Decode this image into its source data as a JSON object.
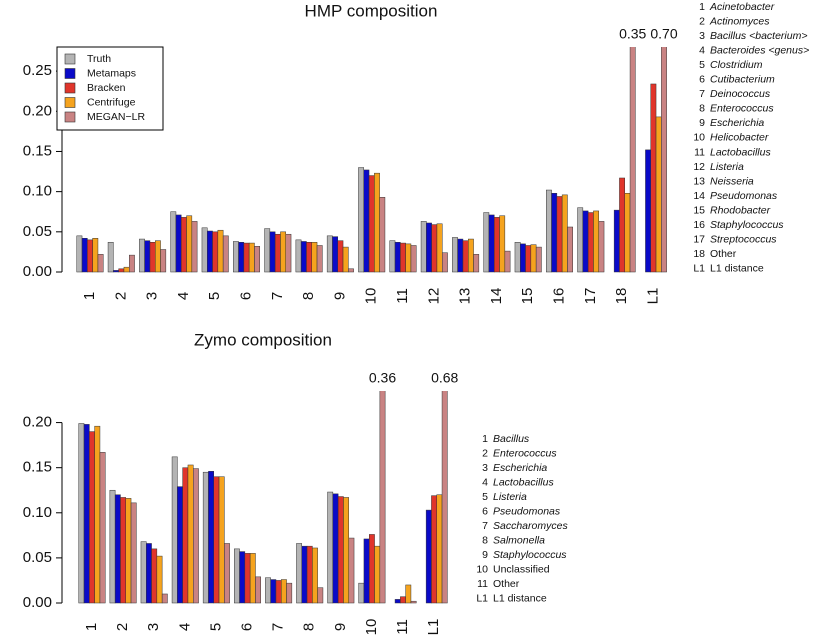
{
  "chart_data": [
    {
      "type": "bar",
      "title": "HMP composition",
      "categories": [
        "1",
        "2",
        "3",
        "4",
        "5",
        "6",
        "7",
        "8",
        "9",
        "10",
        "11",
        "12",
        "13",
        "14",
        "15",
        "16",
        "17",
        "18",
        "L1"
      ],
      "series": [
        {
          "name": "Truth",
          "color": "#b4b4b4",
          "values": [
            0.045,
            0.037,
            0.041,
            0.075,
            0.055,
            0.038,
            0.054,
            0.04,
            0.045,
            0.13,
            0.039,
            0.063,
            0.043,
            0.074,
            0.037,
            0.102,
            0.08,
            0,
            null
          ]
        },
        {
          "name": "Metamaps",
          "color": "#0a0ac8",
          "values": [
            0.042,
            0.002,
            0.039,
            0.071,
            0.051,
            0.037,
            0.05,
            0.038,
            0.044,
            0.127,
            0.037,
            0.061,
            0.041,
            0.071,
            0.035,
            0.098,
            0.076,
            0.077,
            0.152
          ]
        },
        {
          "name": "Bracken",
          "color": "#e0352b",
          "values": [
            0.04,
            0.004,
            0.037,
            0.068,
            0.05,
            0.036,
            0.047,
            0.037,
            0.039,
            0.12,
            0.036,
            0.059,
            0.039,
            0.068,
            0.033,
            0.094,
            0.074,
            0.117,
            0.234
          ]
        },
        {
          "name": "Centrifuge",
          "color": "#f5a31e",
          "values": [
            0.042,
            0.006,
            0.039,
            0.07,
            0.052,
            0.036,
            0.05,
            0.037,
            0.031,
            0.123,
            0.035,
            0.06,
            0.041,
            0.07,
            0.034,
            0.096,
            0.076,
            0.098,
            0.193
          ]
        },
        {
          "name": "MEGAN−LR",
          "color": "#c98383",
          "values": [
            0.022,
            0.021,
            0.028,
            0.063,
            0.045,
            0.032,
            0.047,
            0.033,
            0.004,
            0.093,
            0.033,
            0.024,
            0.022,
            0.026,
            0.031,
            0.056,
            0.063,
            0.35,
            0.7
          ],
          "value_labels": [
            null,
            null,
            null,
            null,
            null,
            null,
            null,
            null,
            null,
            null,
            null,
            null,
            null,
            null,
            null,
            null,
            null,
            "0.35",
            "0.70"
          ]
        }
      ],
      "ylim": [
        0,
        0.28
      ],
      "yticks": [
        {
          "value": 0,
          "label": "0.00"
        },
        {
          "value": 0.05,
          "label": "0.05"
        },
        {
          "value": 0.1,
          "label": "0.10"
        },
        {
          "value": 0.15,
          "label": "0.15"
        },
        {
          "value": 0.2,
          "label": "0.20"
        },
        {
          "value": 0.25,
          "label": "0.25"
        }
      ],
      "legend": "upper left",
      "key": [
        {
          "number": "1",
          "name": "Acinetobacter",
          "italic": true
        },
        {
          "number": "2",
          "name": "Actinomyces",
          "italic": true
        },
        {
          "number": "3",
          "name": "Bacillus <bacterium>",
          "italic": true
        },
        {
          "number": "4",
          "name": "Bacteroides <genus>",
          "italic": true
        },
        {
          "number": "5",
          "name": "Clostridium",
          "italic": true
        },
        {
          "number": "6",
          "name": "Cutibacterium",
          "italic": true
        },
        {
          "number": "7",
          "name": "Deinococcus",
          "italic": true
        },
        {
          "number": "8",
          "name": "Enterococcus",
          "italic": true
        },
        {
          "number": "9",
          "name": "Escherichia",
          "italic": true
        },
        {
          "number": "10",
          "name": "Helicobacter",
          "italic": true
        },
        {
          "number": "11",
          "name": "Lactobacillus",
          "italic": true
        },
        {
          "number": "12",
          "name": "Listeria",
          "italic": true
        },
        {
          "number": "13",
          "name": "Neisseria",
          "italic": true
        },
        {
          "number": "14",
          "name": "Pseudomonas",
          "italic": true
        },
        {
          "number": "15",
          "name": "Rhodobacter",
          "italic": true
        },
        {
          "number": "16",
          "name": "Staphylococcus",
          "italic": true
        },
        {
          "number": "17",
          "name": "Streptococcus",
          "italic": true
        },
        {
          "number": "18",
          "name": "Other",
          "italic": false
        },
        {
          "number": "L1",
          "name": "L1 distance",
          "italic": false
        }
      ]
    },
    {
      "type": "bar",
      "title": "Zymo composition",
      "categories": [
        "1",
        "2",
        "3",
        "4",
        "5",
        "6",
        "7",
        "8",
        "9",
        "10",
        "11",
        "L1"
      ],
      "series": [
        {
          "name": "Truth",
          "color": "#b4b4b4",
          "values": [
            0.199,
            0.125,
            0.068,
            0.162,
            0.145,
            0.06,
            0.028,
            0.066,
            0.123,
            0.022,
            0,
            null
          ]
        },
        {
          "name": "Metamaps",
          "color": "#0a0ac8",
          "values": [
            0.198,
            0.12,
            0.066,
            0.129,
            0.146,
            0.057,
            0.026,
            0.063,
            0.121,
            0.071,
            0.004,
            0.103
          ]
        },
        {
          "name": "Bracken",
          "color": "#e0352b",
          "values": [
            0.19,
            0.117,
            0.06,
            0.15,
            0.14,
            0.055,
            0.025,
            0.063,
            0.118,
            0.076,
            0.007,
            0.119
          ]
        },
        {
          "name": "Centrifuge",
          "color": "#f5a31e",
          "values": [
            0.196,
            0.116,
            0.052,
            0.153,
            0.14,
            0.055,
            0.026,
            0.061,
            0.117,
            0.063,
            0.02,
            0.12
          ]
        },
        {
          "name": "MEGAN−LR",
          "color": "#c98383",
          "values": [
            0.167,
            0.111,
            0.01,
            0.149,
            0.066,
            0.029,
            0.022,
            0.017,
            0.072,
            0.36,
            0.002,
            0.68
          ],
          "value_labels": [
            null,
            null,
            null,
            null,
            null,
            null,
            null,
            null,
            null,
            "0.36",
            null,
            "0.68"
          ]
        }
      ],
      "ylim": [
        0,
        0.235
      ],
      "yticks": [
        {
          "value": 0,
          "label": "0.00"
        },
        {
          "value": 0.05,
          "label": "0.05"
        },
        {
          "value": 0.1,
          "label": "0.10"
        },
        {
          "value": 0.15,
          "label": "0.15"
        },
        {
          "value": 0.2,
          "label": "0.20"
        }
      ],
      "key": [
        {
          "number": "1",
          "name": "Bacillus",
          "italic": true
        },
        {
          "number": "2",
          "name": "Enterococcus",
          "italic": true
        },
        {
          "number": "3",
          "name": "Escherichia",
          "italic": true
        },
        {
          "number": "4",
          "name": "Lactobacillus",
          "italic": true
        },
        {
          "number": "5",
          "name": "Listeria",
          "italic": true
        },
        {
          "number": "6",
          "name": "Pseudomonas",
          "italic": true
        },
        {
          "number": "7",
          "name": "Saccharomyces",
          "italic": true
        },
        {
          "number": "8",
          "name": "Salmonella",
          "italic": true
        },
        {
          "number": "9",
          "name": "Staphylococcus",
          "italic": true
        },
        {
          "number": "10",
          "name": "Unclassified",
          "italic": false
        },
        {
          "number": "11",
          "name": "Other",
          "italic": false
        },
        {
          "number": "L1",
          "name": "L1 distance",
          "italic": false
        }
      ]
    }
  ]
}
